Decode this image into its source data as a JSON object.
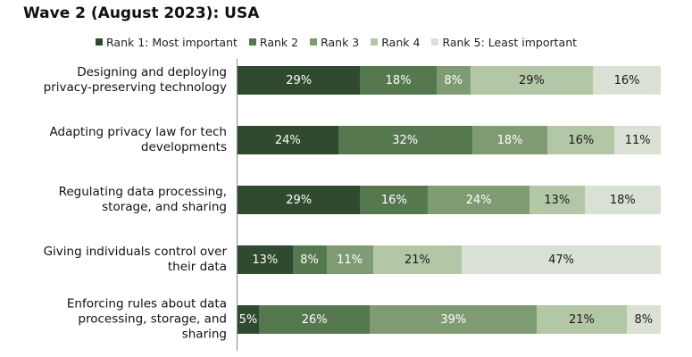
{
  "chart_data": {
    "type": "bar",
    "orientation": "horizontal",
    "stacked": true,
    "title": "Wave 2 (August 2023): USA",
    "xlim": [
      0,
      100
    ],
    "grid": false,
    "legend_position": "top",
    "categories": [
      "Designing and deploying privacy-preserving technology",
      "Adapting privacy law for tech developments",
      "Regulating data processing, storage, and sharing",
      "Giving individuals control over their data",
      "Enforcing rules about data processing, storage, and sharing"
    ],
    "category_lines": [
      [
        "Designing and deploying",
        "privacy-preserving technology"
      ],
      [
        "Adapting privacy law for tech",
        "developments"
      ],
      [
        "Regulating data processing,",
        "storage, and sharing"
      ],
      [
        "Giving individuals control over",
        "their data"
      ],
      [
        "Enforcing rules about data",
        "processing, storage, and",
        "sharing"
      ]
    ],
    "series": [
      {
        "name": "Rank 1: Most important",
        "color": "#2f4a2e",
        "text_color": "#ffffff",
        "values": [
          29,
          24,
          29,
          13,
          5
        ]
      },
      {
        "name": "Rank 2",
        "color": "#56784f",
        "text_color": "#ffffff",
        "values": [
          18,
          32,
          16,
          8,
          26
        ]
      },
      {
        "name": "Rank 3",
        "color": "#7f9b73",
        "text_color": "#ffffff",
        "values": [
          8,
          18,
          24,
          11,
          39
        ]
      },
      {
        "name": "Rank 4",
        "color": "#b3c6a5",
        "text_color": "#1a1a1a",
        "values": [
          29,
          16,
          13,
          21,
          21
        ]
      },
      {
        "name": "Rank 5: Least important",
        "color": "#d9e0d4",
        "text_color": "#1a1a1a",
        "values": [
          16,
          11,
          18,
          47,
          8
        ]
      }
    ],
    "value_suffix": "%"
  }
}
